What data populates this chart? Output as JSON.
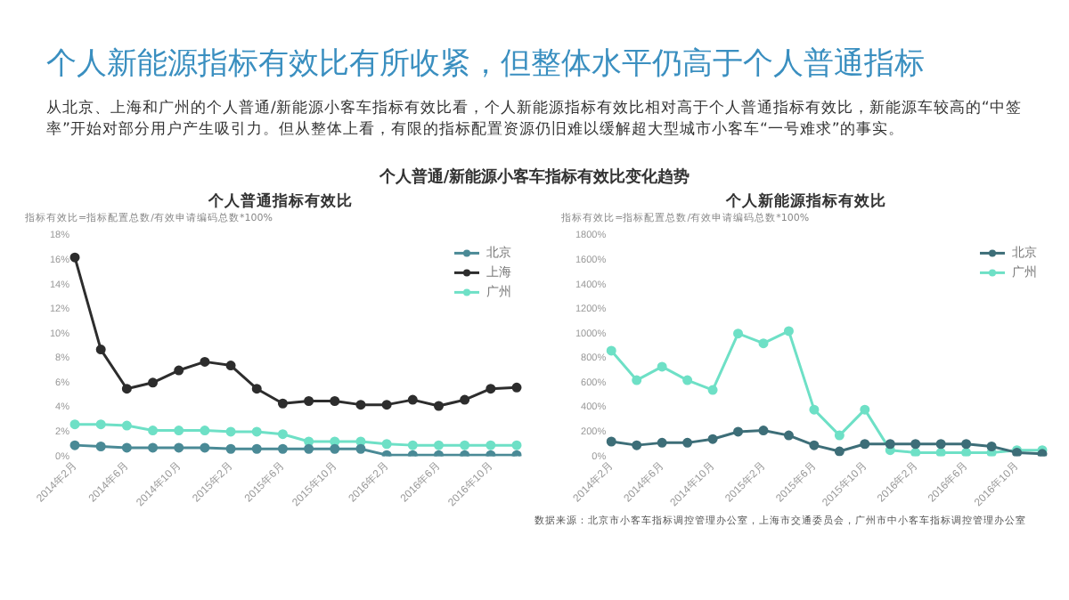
{
  "chart_data": [
    {
      "type": "line",
      "title": "个人普通指标有效比",
      "ylabel": "指标有效比=指标配置总数/有效申请编码总数*100%",
      "annotations": [
        "个人新能源指标有效比有所收紧，但整体水平仍高于个人普通指标",
        "从北京、上海和广州的个人普通/新能源小客车指标有效比看，个人新能源指标有效比相对高于个人普通指标有效比，新能源车较高的“中签率”开始对部分用户产生吸引力。但从整体上看，有限的指标配置资源仍旧难以缓解超大型城市小客车“一号难求”的事实。",
        "个人普通/新能源小客车指标有效比变化趋势"
      ],
      "categories": [
        "2014年2月",
        null,
        "2014年6月",
        null,
        "2014年10月",
        null,
        "2015年2月",
        null,
        "2015年6月",
        null,
        "2015年10月",
        null,
        "2016年2月",
        null,
        "2016年6月",
        null,
        "2016年10月",
        null
      ],
      "series": [
        {
          "name": "北京",
          "color": "#4a8a96",
          "values": [
            0.9,
            0.8,
            0.7,
            0.7,
            0.7,
            0.7,
            0.6,
            0.6,
            0.6,
            0.6,
            0.6,
            0.6,
            0.1,
            0.1,
            0.1,
            0.1,
            0.1,
            0.1
          ]
        },
        {
          "name": "上海",
          "color": "#2d2d2d",
          "values": [
            16.2,
            8.7,
            5.5,
            6.0,
            7.0,
            7.7,
            7.4,
            5.5,
            4.3,
            4.5,
            4.5,
            4.2,
            4.2,
            4.6,
            4.1,
            4.6,
            5.5,
            5.6
          ]
        },
        {
          "name": "广州",
          "color": "#6ee0c6",
          "values": [
            2.6,
            2.6,
            2.5,
            2.1,
            2.1,
            2.1,
            2.0,
            2.0,
            1.8,
            1.2,
            1.2,
            1.2,
            1.0,
            0.9,
            0.9,
            0.9,
            0.9,
            0.9
          ]
        }
      ],
      "ylim": [
        0,
        18
      ],
      "yticks": [
        {
          "value": 0,
          "label": "0%"
        },
        {
          "value": 2,
          "label": "2%"
        },
        {
          "value": 4,
          "label": "4%"
        },
        {
          "value": 6,
          "label": "6%"
        },
        {
          "value": 8,
          "label": "8%"
        },
        {
          "value": 10,
          "label": "10%"
        },
        {
          "value": 12,
          "label": "12%"
        },
        {
          "value": 14,
          "label": "14%"
        },
        {
          "value": 16,
          "label": "16%"
        },
        {
          "value": 18,
          "label": "18%"
        }
      ],
      "grid": false,
      "legend": "top right",
      "marker": "circle",
      "line_style": "solid"
    },
    {
      "type": "line",
      "title": "个人新能源指标有效比",
      "ylabel": "指标有效比=指标配置总数/有效申请编码总数*100%",
      "annotations": [
        "数据来源：北京市小客车指标调控管理办公室，上海市交通委员会，广州市中小客车指标调控管理办公室"
      ],
      "categories": [
        "2014年2月",
        null,
        "2014年6月",
        null,
        "2014年10月",
        null,
        "2015年2月",
        null,
        "2015年6月",
        null,
        "2015年10月",
        null,
        "2016年2月",
        null,
        "2016年6月",
        null,
        "2016年10月",
        null
      ],
      "series": [
        {
          "name": "北京",
          "color": "#3d6e78",
          "values": [
            120,
            90,
            110,
            110,
            140,
            200,
            210,
            170,
            90,
            40,
            100,
            100,
            100,
            100,
            100,
            80,
            30,
            20
          ]
        },
        {
          "name": "广州",
          "color": "#6ee0c6",
          "values": [
            860,
            620,
            730,
            620,
            540,
            1000,
            920,
            1020,
            380,
            170,
            380,
            50,
            30,
            30,
            30,
            30,
            50,
            50
          ]
        }
      ],
      "ylim": [
        0,
        1800
      ],
      "yticks": [
        {
          "value": 0,
          "label": "0%"
        },
        {
          "value": 200,
          "label": "200%"
        },
        {
          "value": 400,
          "label": "400%"
        },
        {
          "value": 600,
          "label": "600%"
        },
        {
          "value": 800,
          "label": "800%"
        },
        {
          "value": 1000,
          "label": "1000%"
        },
        {
          "value": 1200,
          "label": "1200%"
        },
        {
          "value": 1400,
          "label": "1400%"
        },
        {
          "value": 1600,
          "label": "1600%"
        },
        {
          "value": 1800,
          "label": "1800%"
        }
      ],
      "grid": false,
      "legend": "top right",
      "marker": "circle",
      "line_style": "solid"
    }
  ]
}
